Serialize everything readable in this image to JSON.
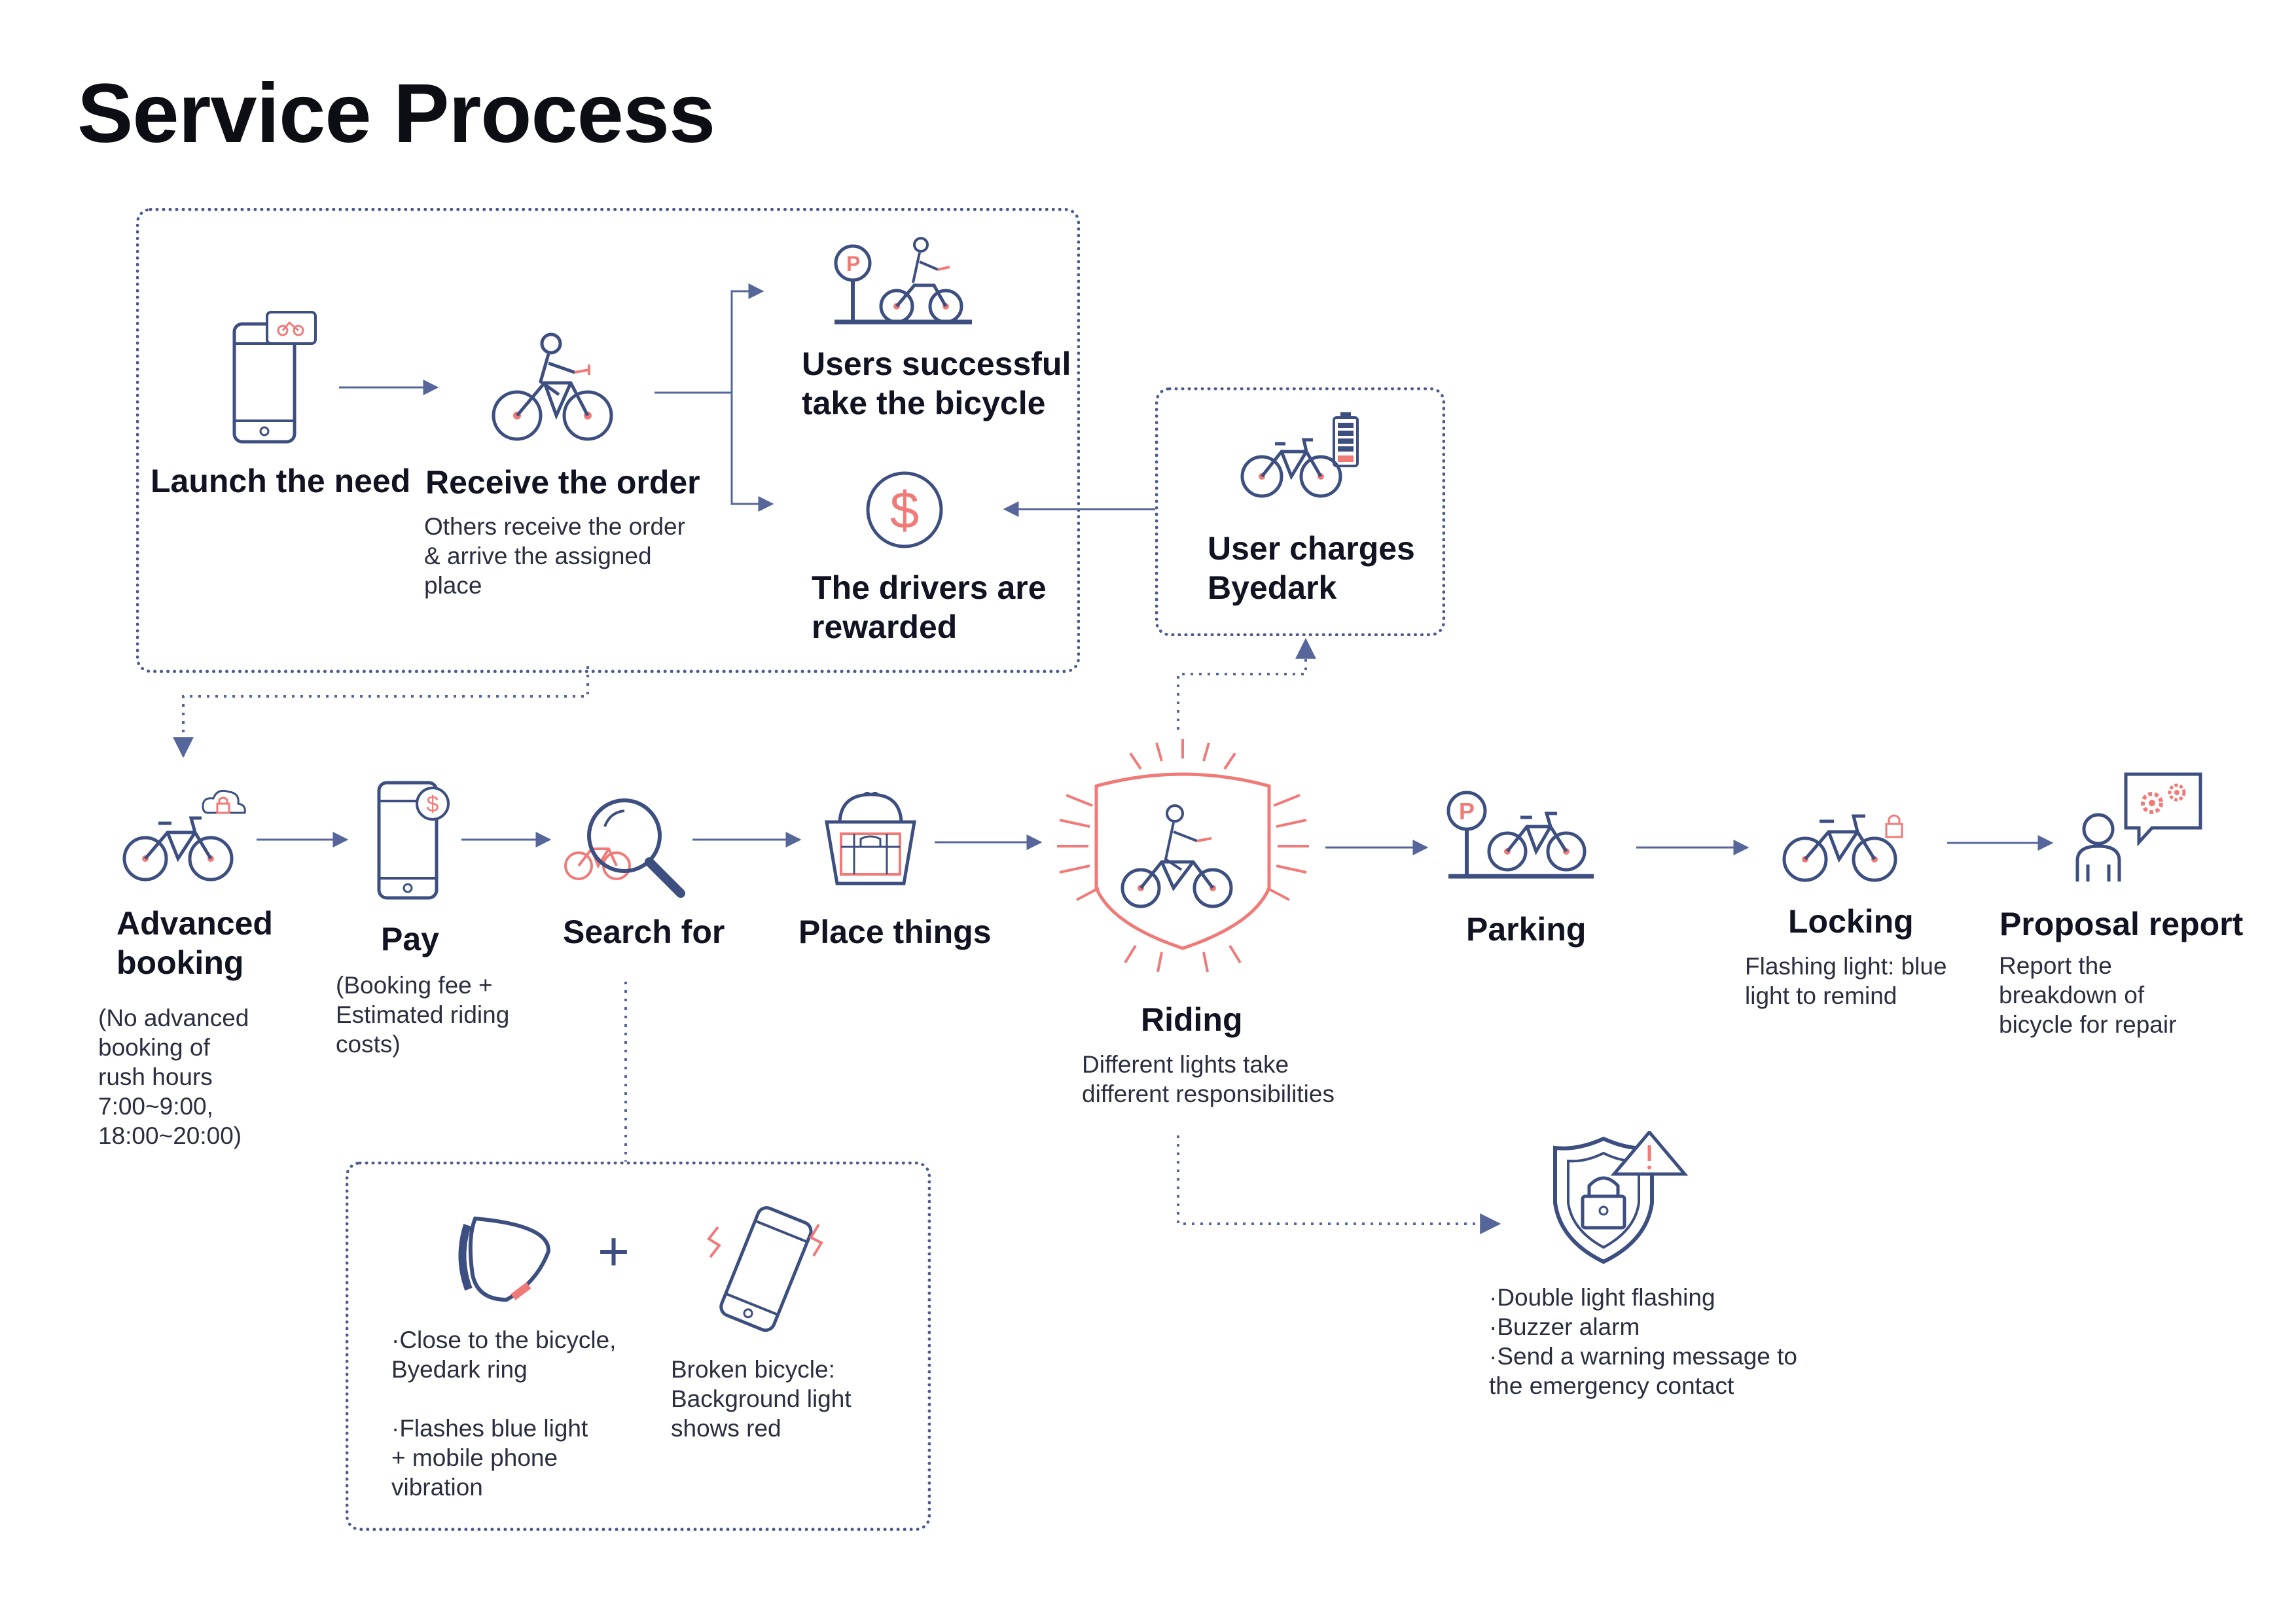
{
  "title": "Service Process",
  "colors": {
    "navy": "#3d4f80",
    "accent": "#f07a78",
    "arrow": "#56669a"
  },
  "top_group": {
    "launch": {
      "label": "Launch the need",
      "icon": "phone-bike-message-icon"
    },
    "receive": {
      "label": "Receive the order",
      "desc": "Others receive the order\n& arrive the assigned\nplace",
      "icon": "cyclist-icon"
    },
    "take": {
      "label": "Users successful\ntake the bicycle",
      "icon": "parking-cyclist-icon"
    },
    "reward": {
      "label": "The drivers are\nrewarded",
      "icon": "dollar-coin-icon"
    }
  },
  "charge": {
    "label": "User charges\nByedark",
    "icon": "bike-battery-icon"
  },
  "steps": {
    "advanced": {
      "label": "Advanced\nbooking",
      "desc": "(No advanced\nbooking of\nrush hours\n7:00~9:00,\n18:00~20:00)",
      "icon": "bike-cloud-lock-icon"
    },
    "pay": {
      "label": "Pay",
      "desc": "(Booking fee +\nEstimated riding\ncosts)",
      "icon": "phone-dollar-icon"
    },
    "search": {
      "label": "Search for",
      "icon": "magnifier-bike-icon"
    },
    "place": {
      "label": "Place things",
      "icon": "basket-icon"
    },
    "riding": {
      "label": "Riding",
      "desc": "Different lights take\ndifferent responsibilities",
      "icon": "riding-shield-icon"
    },
    "parking": {
      "label": "Parking",
      "icon": "parking-bike-icon"
    },
    "locking": {
      "label": "Locking",
      "desc": "Flashing light: blue\nlight to remind",
      "icon": "bike-lock-icon"
    },
    "proposal": {
      "label": "Proposal report",
      "desc": "Report the\nbreakdown of\nbicycle for repair",
      "icon": "user-gear-report-icon"
    }
  },
  "search_box": {
    "ring_desc": "·Close to the bicycle,\nByedark ring\n\n·Flashes blue light\n+ mobile phone\nvibration",
    "plus": "+",
    "broken_desc": "Broken bicycle:\nBackground light\nshows red",
    "ring_icon": "byedark-ring-icon",
    "phone_icon": "vibrating-phone-icon"
  },
  "alarm": {
    "desc": "·Double light flashing\n·Buzzer alarm\n·Send a warning message to\nthe emergency contact",
    "icon": "shield-lock-warning-icon"
  }
}
